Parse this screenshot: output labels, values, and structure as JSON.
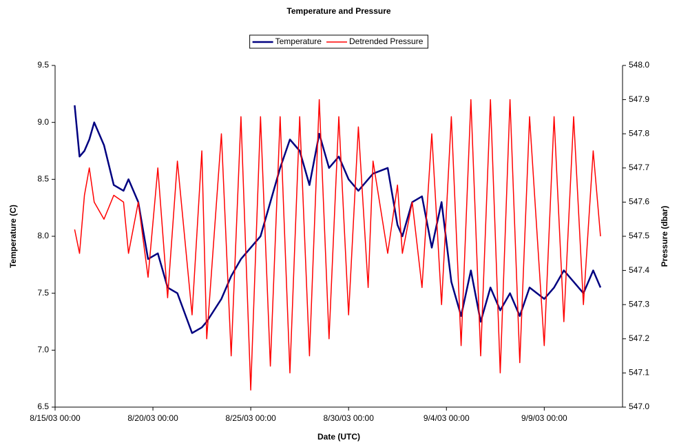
{
  "chart_data": {
    "type": "line",
    "title": "Temperature and Pressure",
    "xlabel": "Date (UTC)",
    "ylabel": "Temperature (C)",
    "y2label": "Pressure (dbar)",
    "x": [
      "8/16/03 00:00",
      "8/16/03 06:00",
      "8/16/03 12:00",
      "8/16/03 18:00",
      "8/17/03 00:00",
      "8/17/03 12:00",
      "8/18/03 00:00",
      "8/18/03 12:00",
      "8/18/03 18:00",
      "8/19/03 06:00",
      "8/19/03 18:00",
      "8/20/03 06:00",
      "8/20/03 18:00",
      "8/21/03 06:00",
      "8/22/03 00:00",
      "8/22/03 12:00",
      "8/22/03 18:00",
      "8/23/03 12:00",
      "8/24/03 00:00",
      "8/24/03 12:00",
      "8/25/03 00:00",
      "8/25/03 12:00",
      "8/26/03 00:00",
      "8/26/03 12:00",
      "8/27/03 00:00",
      "8/27/03 12:00",
      "8/28/03 00:00",
      "8/28/03 12:00",
      "8/29/03 00:00",
      "8/29/03 12:00",
      "8/30/03 00:00",
      "8/30/03 12:00",
      "8/31/03 00:00",
      "8/31/03 06:00",
      "9/1/03 00:00",
      "9/1/03 12:00",
      "9/1/03 18:00",
      "9/2/03 06:00",
      "9/2/03 18:00",
      "9/3/03 06:00",
      "9/3/03 18:00",
      "9/4/03 06:00",
      "9/4/03 18:00",
      "9/5/03 06:00",
      "9/5/03 18:00",
      "9/6/03 06:00",
      "9/6/03 18:00",
      "9/7/03 06:00",
      "9/7/03 18:00",
      "9/8/03 06:00",
      "9/9/03 00:00",
      "9/9/03 12:00",
      "9/10/03 00:00",
      "9/10/03 12:00",
      "9/11/03 00:00",
      "9/11/03 12:00",
      "9/11/03 21:00"
    ],
    "series": [
      {
        "name": "Temperature",
        "color": "#000080",
        "axis": "y",
        "values": [
          9.15,
          8.7,
          8.75,
          8.85,
          9.0,
          8.8,
          8.45,
          8.4,
          8.5,
          8.3,
          7.8,
          7.85,
          7.55,
          7.5,
          7.15,
          7.2,
          7.25,
          7.45,
          7.65,
          7.8,
          7.9,
          8.0,
          8.3,
          8.6,
          8.85,
          8.75,
          8.45,
          8.9,
          8.6,
          8.7,
          8.5,
          8.4,
          8.5,
          8.55,
          8.6,
          8.1,
          8.0,
          8.3,
          8.35,
          7.9,
          8.3,
          7.6,
          7.3,
          7.7,
          7.25,
          7.55,
          7.35,
          7.5,
          7.3,
          7.55,
          7.45,
          7.55,
          7.7,
          7.6,
          7.5,
          7.7,
          7.55
        ]
      },
      {
        "name": "Detrended Pressure",
        "color": "#ff0000",
        "axis": "y2",
        "values": [
          547.52,
          547.45,
          547.62,
          547.7,
          547.6,
          547.55,
          547.62,
          547.6,
          547.45,
          547.6,
          547.38,
          547.7,
          547.32,
          547.72,
          547.27,
          547.75,
          547.2,
          547.8,
          547.15,
          547.85,
          547.05,
          547.85,
          547.12,
          547.85,
          547.1,
          547.85,
          547.15,
          547.9,
          547.2,
          547.85,
          547.27,
          547.82,
          547.35,
          547.72,
          547.45,
          547.65,
          547.45,
          547.6,
          547.35,
          547.8,
          547.3,
          547.85,
          547.18,
          547.9,
          547.15,
          547.9,
          547.1,
          547.9,
          547.13,
          547.85,
          547.18,
          547.85,
          547.25,
          547.85,
          547.3,
          547.75,
          547.5
        ]
      }
    ],
    "xlim": [
      "8/15/03 00:00",
      "9/13/03 00:00"
    ],
    "xticks": [
      "8/15/03 00:00",
      "8/20/03 00:00",
      "8/25/03 00:00",
      "8/30/03 00:00",
      "9/4/03 00:00",
      "9/9/03 00:00"
    ],
    "ylim": [
      6.5,
      9.5
    ],
    "yticks": [
      {
        "value": 6.5,
        "label": "6.5"
      },
      {
        "value": 7,
        "label": "7.0"
      },
      7.5,
      {
        "value": 8,
        "label": "8.0"
      },
      8.5,
      {
        "value": 9,
        "label": "9.0"
      },
      9.5
    ],
    "y2lim": [
      547,
      548
    ],
    "y2ticks": [
      {
        "value": 547,
        "label": "547.0"
      },
      547.1,
      547.2,
      547.3,
      547.4,
      547.5,
      547.6,
      547.7,
      547.8,
      547.9,
      {
        "value": 548,
        "label": "548.0"
      }
    ],
    "legend": "top"
  }
}
